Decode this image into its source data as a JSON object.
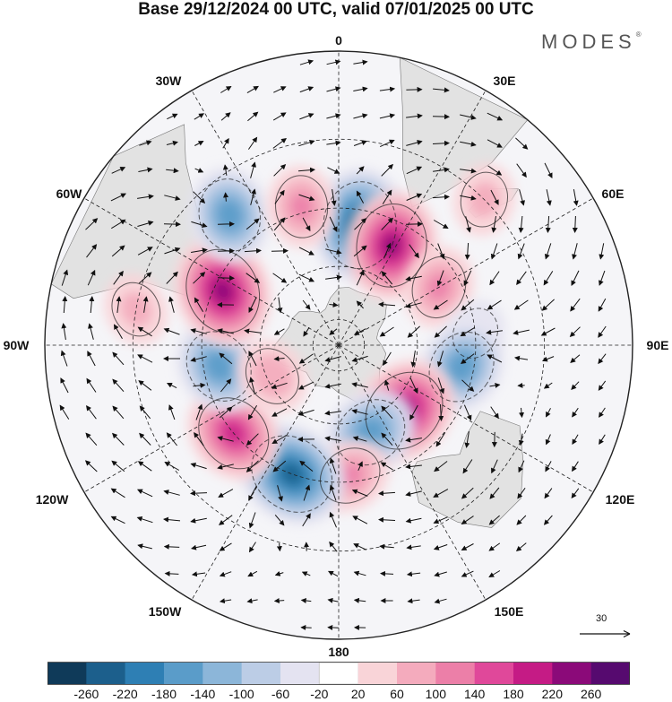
{
  "title": "Base 29/12/2024 00 UTC, valid 07/01/2025 00 UTC",
  "brand": "MODES",
  "brand_mark": "®",
  "longitude_labels": {
    "lon_0": "0",
    "lon_30e": "30E",
    "lon_60e": "60E",
    "lon_90e": "90E",
    "lon_120e": "120E",
    "lon_150e": "150E",
    "lon_180": "180",
    "lon_150w": "150W",
    "lon_120w": "120W",
    "lon_90w": "90W",
    "lon_60w": "60W",
    "lon_30w": "30W"
  },
  "reference_vector": "30",
  "colorbar": {
    "labels": [
      "-260",
      "-220",
      "-180",
      "-140",
      "-100",
      "-60",
      "-20",
      "20",
      "60",
      "100",
      "140",
      "180",
      "220",
      "260"
    ],
    "colors": [
      "#0f3a59",
      "#1c5f8c",
      "#2e7fb4",
      "#5a9cc9",
      "#8cb6d9",
      "#bccde6",
      "#e4e3f1",
      "#ffffff",
      "#f9d4d8",
      "#f4abbd",
      "#ec7fa8",
      "#e0489a",
      "#c51b85",
      "#8b0a79",
      "#560a6f"
    ]
  },
  "map": {
    "projection": "south-polar-stereographic",
    "land_color": "#e2e2e2",
    "anomalies": [
      {
        "lon": 10,
        "lat": -45,
        "value": -240
      },
      {
        "lon": 28,
        "lat": -48,
        "value": 220
      },
      {
        "lon": 60,
        "lat": -47,
        "value": 100
      },
      {
        "lon": 85,
        "lat": -40,
        "value": -40
      },
      {
        "lon": 100,
        "lat": -44,
        "value": -160
      },
      {
        "lon": 135,
        "lat": -55,
        "value": 220
      },
      {
        "lon": 160,
        "lat": -55,
        "value": -160
      },
      {
        "lon": 175,
        "lat": -42,
        "value": 100
      },
      {
        "lon": -160,
        "lat": -40,
        "value": -230
      },
      {
        "lon": -130,
        "lat": -40,
        "value": 180
      },
      {
        "lon": -100,
        "lat": -45,
        "value": -160
      },
      {
        "lon": -65,
        "lat": -43,
        "value": 230
      },
      {
        "lon": -40,
        "lat": -30,
        "value": -160
      },
      {
        "lon": -15,
        "lat": -38,
        "value": 100
      },
      {
        "lon": -115,
        "lat": -62,
        "value": 80
      },
      {
        "lon": 45,
        "lat": -20,
        "value": 60
      },
      {
        "lon": -80,
        "lat": -20,
        "value": 60
      }
    ]
  }
}
